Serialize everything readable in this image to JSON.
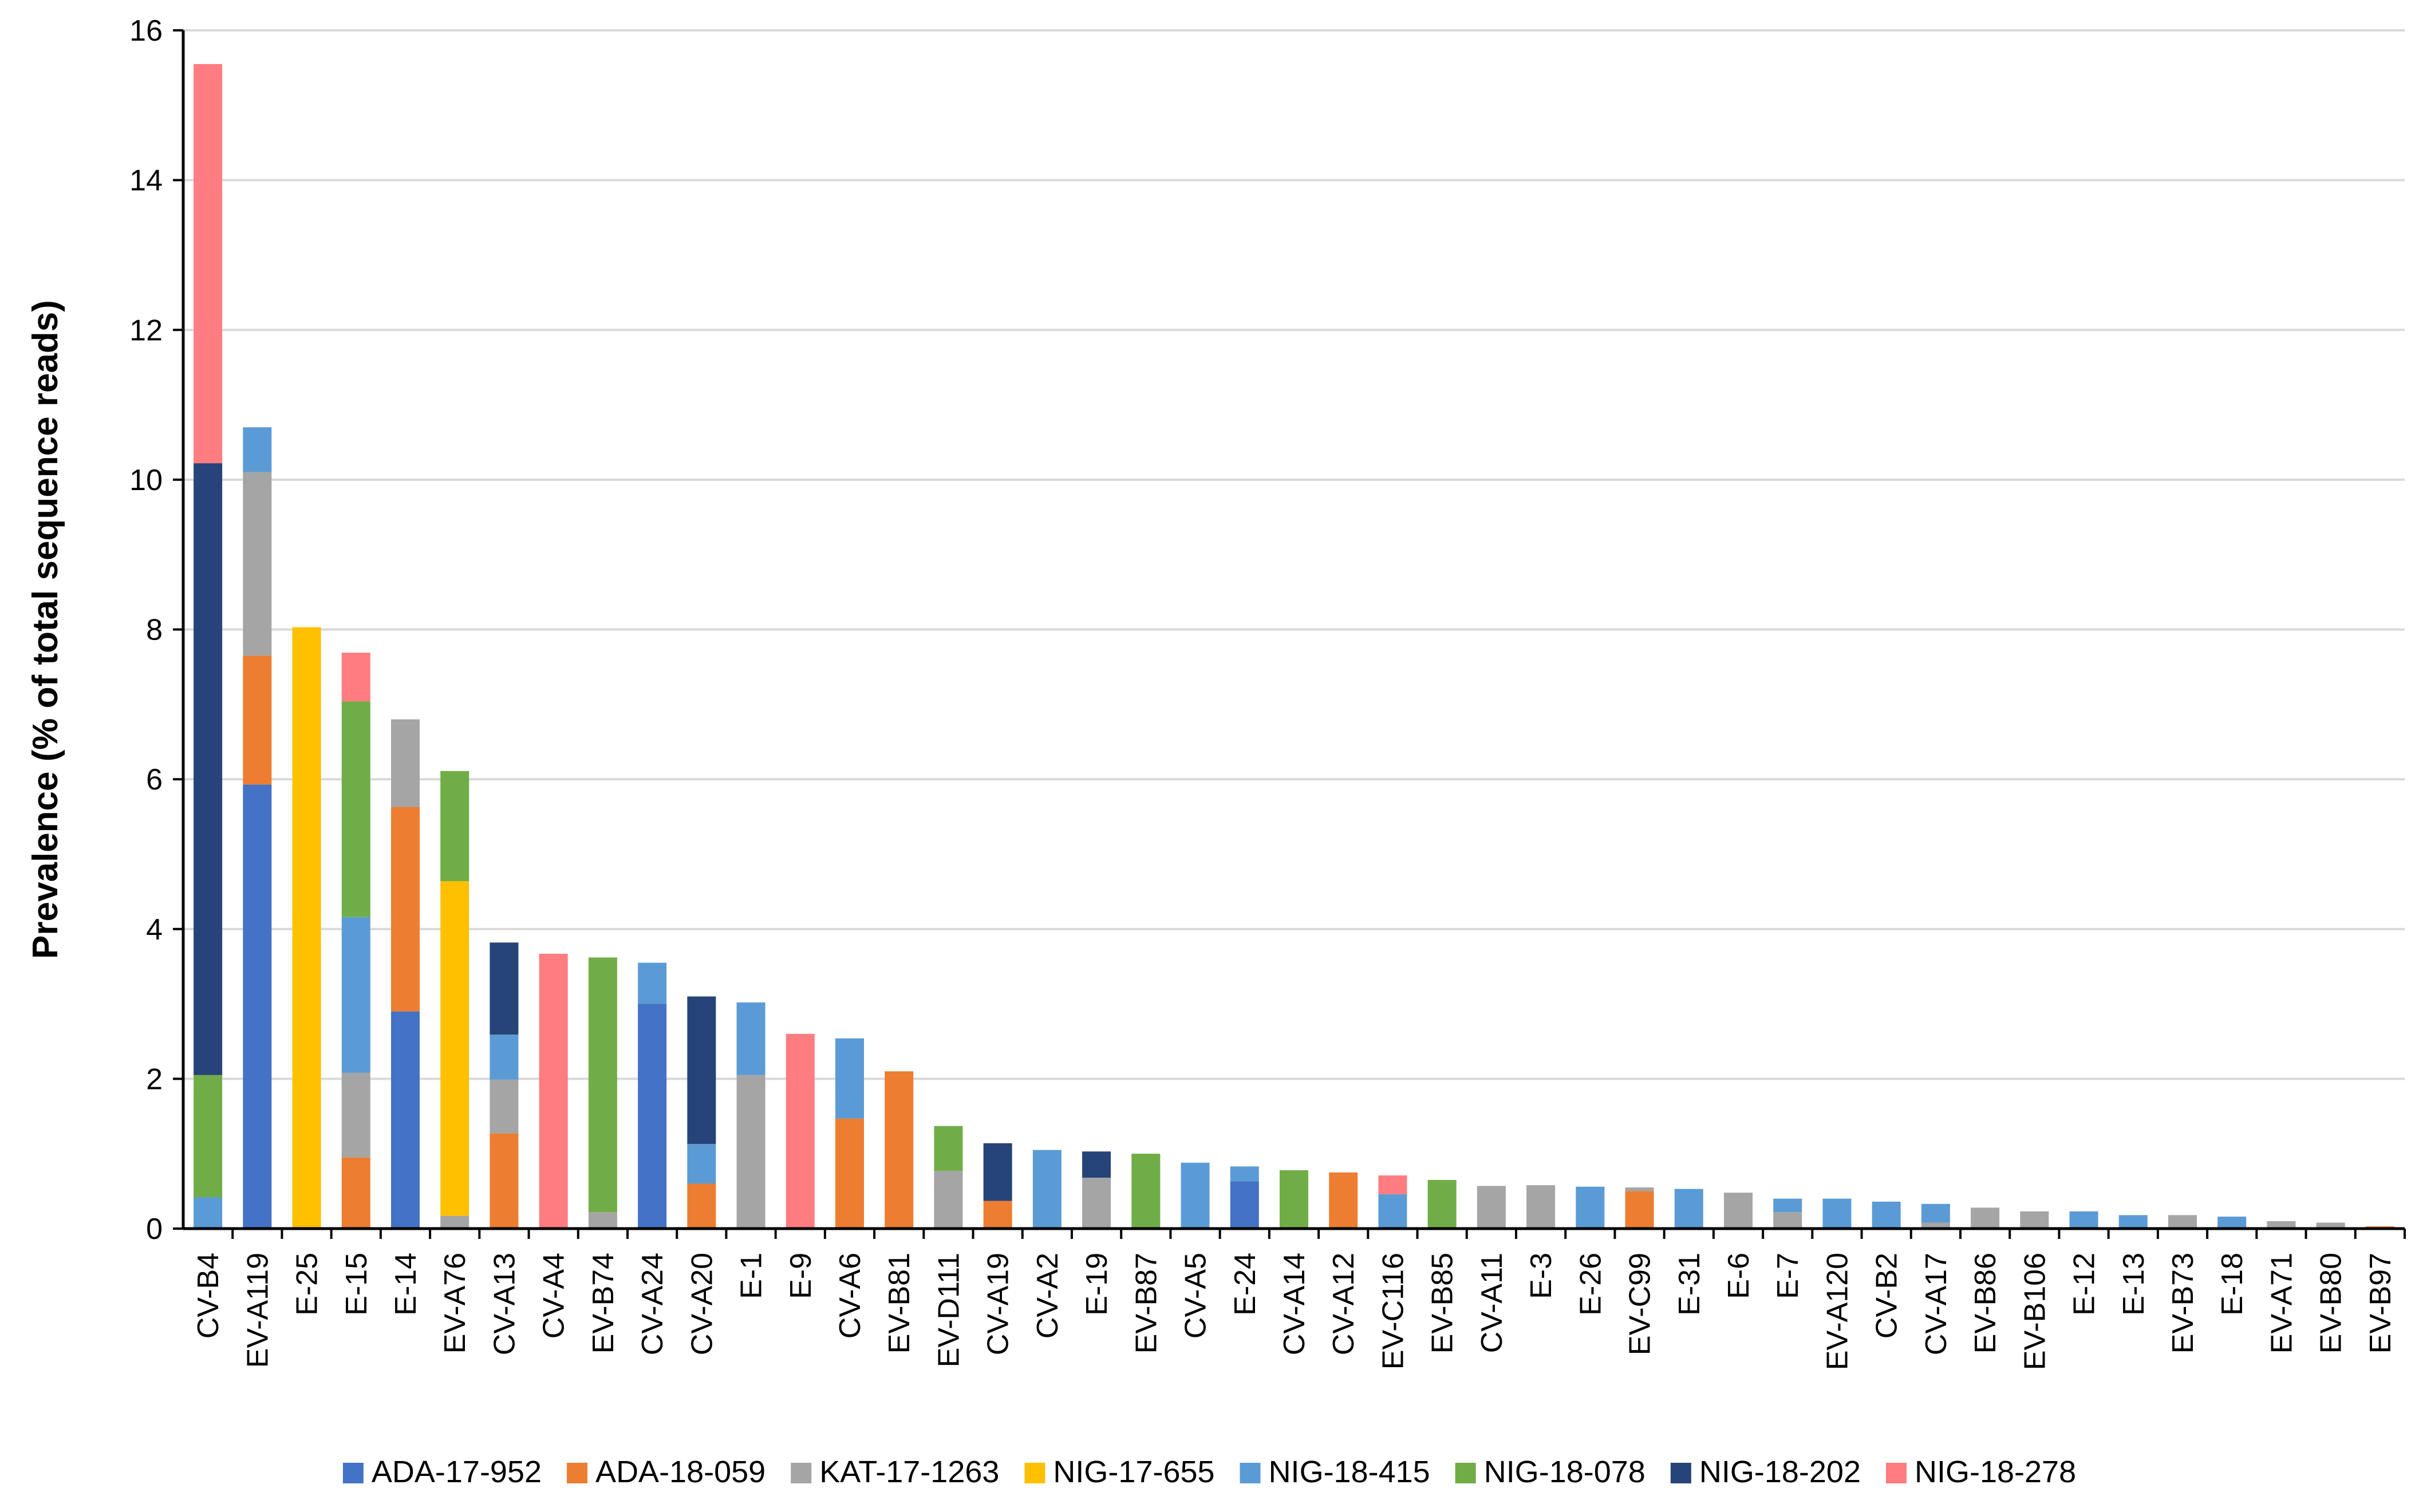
{
  "chart_data": {
    "type": "bar",
    "stacked": true,
    "title": "",
    "xlabel": "",
    "ylabel": "Prevalence (% of total sequence reads)",
    "ylim": [
      0,
      16
    ],
    "yticks": [
      0,
      2,
      4,
      6,
      8,
      10,
      12,
      14,
      16
    ],
    "grid": true,
    "legend_position": "bottom",
    "categories": [
      "CV-B4",
      "EV-A119",
      "E-25",
      "E-15",
      "E-14",
      "EV-A76",
      "CV-A13",
      "CV-A4",
      "EV-B74",
      "CV-A24",
      "CV-A20",
      "E-1",
      "E-9",
      "CV-A6",
      "EV-B81",
      "EV-D111",
      "CV-A19",
      "CV-A2",
      "E-19",
      "EV-B87",
      "CV-A5",
      "E-24",
      "CV-A14",
      "CV-A12",
      "EV-C116",
      "EV-B85",
      "CV-A11",
      "E-3",
      "E-26",
      "EV-C99",
      "E-31",
      "E-6",
      "E-7",
      "EV-A120",
      "CV-B2",
      "CV-A17",
      "EV-B86",
      "EV-B106",
      "E-12",
      "E-13",
      "EV-B73",
      "E-18",
      "EV-A71",
      "EV-B80",
      "EV-B97"
    ],
    "series": [
      {
        "name": "ADA-17-952",
        "color": "#4472C4",
        "values": [
          0,
          5.93,
          0,
          0,
          2.9,
          0,
          0,
          0,
          0,
          3.0,
          0,
          0,
          0,
          0,
          0,
          0,
          0,
          0,
          0,
          0,
          0,
          0.63,
          0,
          0,
          0,
          0,
          0,
          0,
          0,
          0,
          0,
          0,
          0,
          0,
          0,
          0,
          0,
          0,
          0,
          0,
          0,
          0,
          0,
          0,
          0
        ]
      },
      {
        "name": "ADA-18-059",
        "color": "#ED7D31",
        "values": [
          0,
          1.72,
          0,
          0.95,
          2.73,
          0,
          1.27,
          0,
          0,
          0,
          0.6,
          0,
          0,
          1.47,
          2.1,
          0,
          0.37,
          0,
          0,
          0,
          0,
          0,
          0,
          0.75,
          0,
          0,
          0,
          0,
          0,
          0.5,
          0,
          0,
          0,
          0,
          0,
          0,
          0,
          0,
          0,
          0,
          0,
          0,
          0,
          0,
          0.03
        ]
      },
      {
        "name": "KAT-17-1263",
        "color": "#A5A5A5",
        "values": [
          0,
          2.45,
          0,
          1.13,
          1.17,
          0.17,
          0.72,
          0,
          0.22,
          0,
          0,
          2.05,
          0,
          0,
          0,
          0.77,
          0,
          0,
          0.68,
          0,
          0,
          0,
          0,
          0,
          0,
          0,
          0.57,
          0.58,
          0,
          0.05,
          0,
          0.48,
          0.22,
          0,
          0,
          0.08,
          0.28,
          0.23,
          0,
          0,
          0.18,
          0,
          0.1,
          0.08,
          0
        ]
      },
      {
        "name": "NIG-17-655",
        "color": "#FFC000",
        "values": [
          0,
          0,
          8.03,
          0,
          0,
          4.47,
          0,
          0,
          0,
          0,
          0,
          0,
          0,
          0,
          0,
          0,
          0,
          0,
          0,
          0,
          0,
          0,
          0,
          0,
          0,
          0,
          0,
          0,
          0,
          0,
          0,
          0,
          0,
          0,
          0,
          0,
          0,
          0,
          0,
          0,
          0,
          0,
          0,
          0,
          0
        ]
      },
      {
        "name": "NIG-18-415",
        "color": "#5B9BD5",
        "values": [
          0.42,
          0.6,
          0,
          2.08,
          0,
          0,
          0.6,
          0,
          0,
          0.55,
          0.53,
          0.97,
          0,
          1.07,
          0,
          0,
          0,
          1.05,
          0,
          0,
          0.88,
          0.2,
          0,
          0,
          0.46,
          0,
          0,
          0,
          0.56,
          0,
          0.53,
          0,
          0.18,
          0.4,
          0.36,
          0.25,
          0,
          0,
          0.23,
          0.18,
          0,
          0.16,
          0,
          0,
          0
        ]
      },
      {
        "name": "NIG-18-078",
        "color": "#70AD47",
        "values": [
          1.63,
          0,
          0,
          2.88,
          0,
          1.47,
          0,
          0,
          3.4,
          0,
          0,
          0,
          0,
          0,
          0,
          0.6,
          0,
          0,
          0,
          1.0,
          0,
          0,
          0.78,
          0,
          0,
          0.65,
          0,
          0,
          0,
          0,
          0,
          0,
          0,
          0,
          0,
          0,
          0,
          0,
          0,
          0,
          0,
          0,
          0,
          0,
          0
        ]
      },
      {
        "name": "NIG-18-202",
        "color": "#264478",
        "values": [
          8.17,
          0,
          0,
          0,
          0,
          0,
          1.23,
          0,
          0,
          0,
          1.97,
          0,
          0,
          0,
          0,
          0,
          0.77,
          0,
          0.35,
          0,
          0,
          0,
          0,
          0,
          0,
          0,
          0,
          0,
          0,
          0,
          0,
          0,
          0,
          0,
          0,
          0,
          0,
          0,
          0,
          0,
          0,
          0,
          0,
          0,
          0
        ]
      },
      {
        "name": "NIG-18-278",
        "color": "#FF7C80",
        "values": [
          5.33,
          0,
          0,
          0.65,
          0,
          0,
          0,
          3.67,
          0,
          0,
          0,
          0,
          2.6,
          0,
          0,
          0,
          0,
          0,
          0,
          0,
          0,
          0,
          0,
          0,
          0.25,
          0,
          0,
          0,
          0,
          0,
          0,
          0,
          0,
          0,
          0,
          0,
          0,
          0,
          0,
          0,
          0,
          0,
          0,
          0,
          0
        ]
      }
    ]
  }
}
